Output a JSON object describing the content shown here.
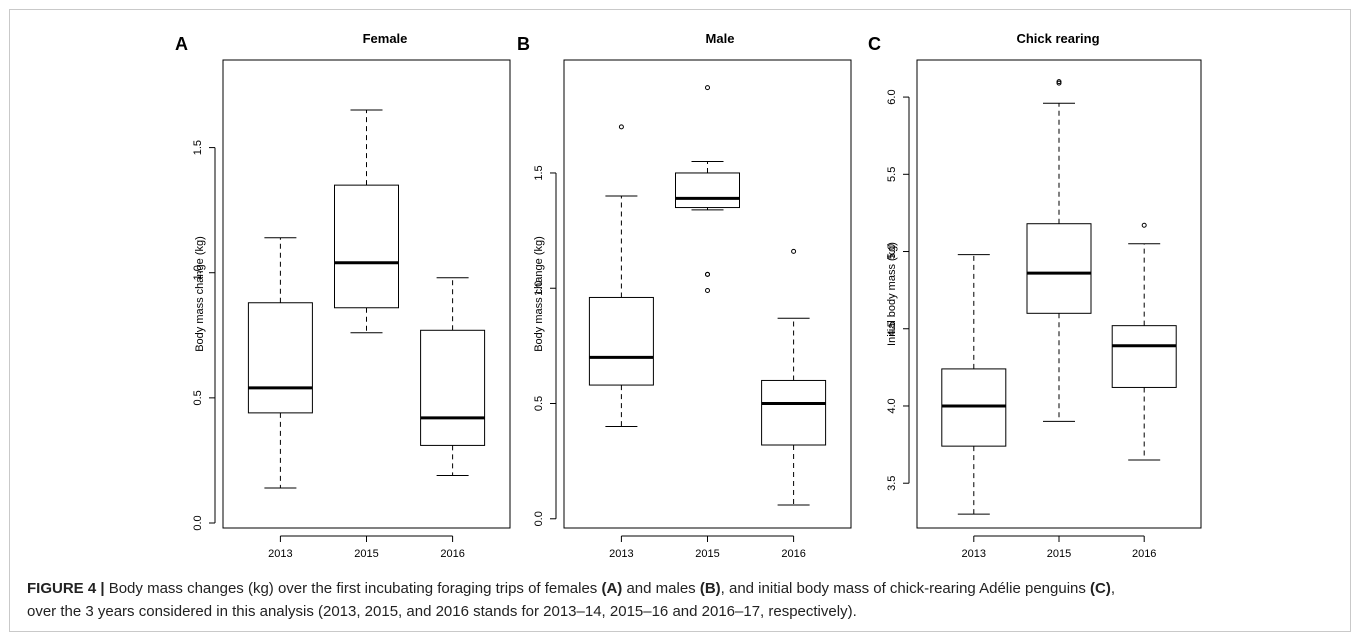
{
  "chart_data": [
    {
      "panel": "A",
      "type": "boxplot",
      "title": "Female",
      "xlabel": "",
      "ylabel": "Body mass change (kg)",
      "categories": [
        "2013",
        "2015",
        "2016"
      ],
      "ylim": [
        -0.02,
        1.85
      ],
      "yticks": [
        0.0,
        0.5,
        1.0,
        1.5
      ],
      "ytick_labels": [
        "0.0",
        "0.5",
        "1.0",
        "1.5"
      ],
      "boxes": [
        {
          "category": "2013",
          "whisker_low": 0.14,
          "q1": 0.44,
          "median": 0.54,
          "q3": 0.88,
          "whisker_high": 1.14,
          "outliers": []
        },
        {
          "category": "2015",
          "whisker_low": 0.76,
          "q1": 0.86,
          "median": 1.04,
          "q3": 1.35,
          "whisker_high": 1.65,
          "outliers": []
        },
        {
          "category": "2016",
          "whisker_low": 0.19,
          "q1": 0.31,
          "median": 0.42,
          "q3": 0.77,
          "whisker_high": 0.98,
          "outliers": []
        }
      ]
    },
    {
      "panel": "B",
      "type": "boxplot",
      "title": "Male",
      "xlabel": "",
      "ylabel": "Body mass change (kg)",
      "categories": [
        "2013",
        "2015",
        "2016"
      ],
      "ylim": [
        -0.04,
        1.99
      ],
      "yticks": [
        0.0,
        0.5,
        1.0,
        1.5
      ],
      "ytick_labels": [
        "0.0",
        "0.5",
        "1.0",
        "1.5"
      ],
      "boxes": [
        {
          "category": "2013",
          "whisker_low": 0.4,
          "q1": 0.58,
          "median": 0.7,
          "q3": 0.96,
          "whisker_high": 1.4,
          "outliers": [
            1.7
          ]
        },
        {
          "category": "2015",
          "whisker_low": 1.34,
          "q1": 1.35,
          "median": 1.39,
          "q3": 1.5,
          "whisker_high": 1.55,
          "outliers": [
            1.87,
            1.06,
            1.06,
            0.99
          ]
        },
        {
          "category": "2016",
          "whisker_low": 0.06,
          "q1": 0.32,
          "median": 0.5,
          "q3": 0.6,
          "whisker_high": 0.87,
          "outliers": [
            1.16
          ]
        }
      ]
    },
    {
      "panel": "C",
      "type": "boxplot",
      "title": "Chick rearing",
      "xlabel": "",
      "ylabel": "Initial body mass (kg)",
      "categories": [
        "2013",
        "2015",
        "2016"
      ],
      "ylim": [
        3.21,
        6.24
      ],
      "yticks": [
        3.5,
        4.0,
        4.5,
        5.0,
        5.5,
        6.0
      ],
      "ytick_labels": [
        "3.5",
        "4.0",
        "4.5",
        "5.0",
        "5.5",
        "6.0"
      ],
      "boxes": [
        {
          "category": "2013",
          "whisker_low": 3.3,
          "q1": 3.74,
          "median": 4.0,
          "q3": 4.24,
          "whisker_high": 4.98,
          "outliers": []
        },
        {
          "category": "2015",
          "whisker_low": 3.9,
          "q1": 4.6,
          "median": 4.86,
          "q3": 5.18,
          "whisker_high": 5.96,
          "outliers": [
            6.1,
            6.09
          ]
        },
        {
          "category": "2016",
          "whisker_low": 3.65,
          "q1": 4.12,
          "median": 4.39,
          "q3": 4.52,
          "whisker_high": 5.05,
          "outliers": [
            5.17
          ]
        }
      ]
    }
  ],
  "caption": {
    "label": "FIGURE 4 |",
    "part1": " Body mass changes (kg) over the first incubating foraging trips of females ",
    "ref_a": "(A)",
    "part2": " and males ",
    "ref_b": "(B)",
    "part3": ", and initial body mass of chick-rearing Adélie penguins ",
    "ref_c": "(C)",
    "part4": ",",
    "line2": "over the 3 years considered in this analysis (2013, 2015, and 2016 stands for 2013–14, 2015–16 and 2016–17, respectively)."
  }
}
